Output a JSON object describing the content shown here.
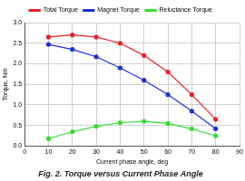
{
  "chart_data": {
    "type": "line",
    "title": "Fig. 2. Torque versus Current Phase Angle",
    "x_label": "Current phase angle, deg",
    "y_label": "Torque, Nm",
    "x": [
      10,
      20,
      30,
      40,
      50,
      60,
      70,
      80
    ],
    "series": [
      {
        "name": "Total Torque",
        "color": "#e8202a",
        "marker": "circle",
        "line_style": "solid",
        "values": [
          2.65,
          2.7,
          2.65,
          2.5,
          2.2,
          1.8,
          1.25,
          0.65
        ]
      },
      {
        "name": "Magnet Torque",
        "color": "#1f2fd8",
        "marker": "circle",
        "line_style": "solid",
        "values": [
          2.47,
          2.35,
          2.17,
          1.9,
          1.6,
          1.25,
          0.85,
          0.42
        ]
      },
      {
        "name": "Reluctance Torque",
        "color": "#33dd33",
        "marker": "circle",
        "line_style": "solid",
        "values": [
          0.18,
          0.35,
          0.48,
          0.57,
          0.6,
          0.55,
          0.42,
          0.25
        ]
      }
    ],
    "xlim": [
      0,
      90
    ],
    "xticks": [
      0,
      10,
      20,
      30,
      40,
      50,
      60,
      70,
      80,
      90
    ],
    "ylim": [
      0,
      3.0
    ],
    "yticks": [
      {
        "value": 0,
        "label": "0.0"
      },
      0.5,
      {
        "value": 1,
        "label": "1.0"
      },
      1.5,
      {
        "value": 2,
        "label": "2.0"
      },
      2.5,
      {
        "value": 3,
        "label": "3.0"
      }
    ],
    "grid": true,
    "legend": "top"
  }
}
